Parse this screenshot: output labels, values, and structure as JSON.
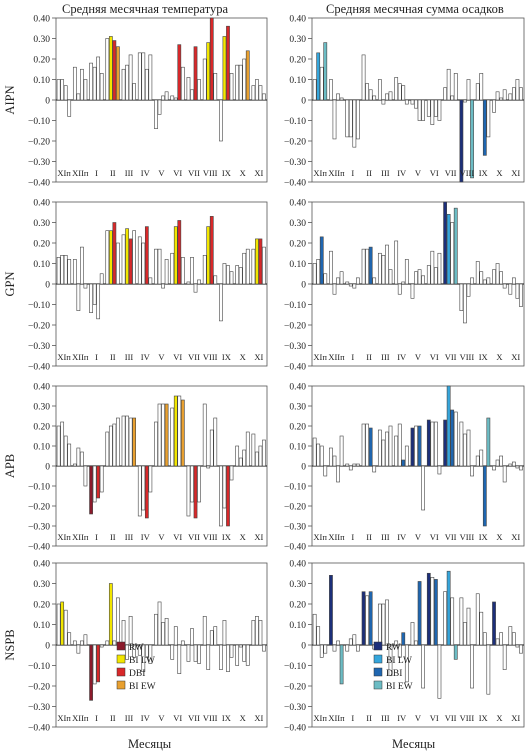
{
  "column_titles": [
    "Средняя месячная температура",
    "Средняя месячная сумма осадков"
  ],
  "xlabel": "Месяцы",
  "month_labels": [
    "XIп",
    "XIIп",
    "I",
    "II",
    "III",
    "IV",
    "V",
    "VI",
    "VII",
    "VIII",
    "IX",
    "X",
    "XI"
  ],
  "row_labels": [
    "AIPN",
    "GPN",
    "APB",
    "NSPB"
  ],
  "yticks": [
    "0.40",
    "0.30",
    "0.20",
    "0.10",
    "0",
    "−0.10",
    "−0.20",
    "−0.30",
    "−0.40"
  ],
  "legend": [
    {
      "label": "RW",
      "color": "#8b1a2b"
    },
    {
      "label": "BI LW",
      "color": "#f2e600"
    },
    {
      "label": "DBI",
      "color": "#d8282a"
    },
    {
      "label": "BI EW",
      "color": "#e8a030"
    }
  ],
  "legend_precip": [
    {
      "label": "RW",
      "color": "#1c2f7a"
    },
    {
      "label": "BI LW",
      "color": "#35a6dc"
    },
    {
      "label": "DBI",
      "color": "#1f66b0"
    },
    {
      "label": "BI EW",
      "color": "#6cbcc4"
    }
  ],
  "chart_data": [
    {
      "type": "bar",
      "row": "AIPN",
      "column": "temperature",
      "ylim": [
        -0.4,
        0.4
      ],
      "categories": [
        "XIп",
        "XIIп",
        "I",
        "II",
        "III",
        "IV",
        "V",
        "VI",
        "VII",
        "VIII",
        "IX",
        "X",
        "XI"
      ],
      "series": [
        {
          "name": "RW",
          "values": [
            0.1,
            0.16,
            0.18,
            0.3,
            0.15,
            0.23,
            -0.14,
            0.02,
            0.11,
            0.2,
            -0.2,
            0.17,
            0.07
          ]
        },
        {
          "name": "BI LW",
          "values": [
            0.1,
            0.03,
            0.16,
            0.31,
            0.17,
            0.23,
            -0.07,
            0.01,
            0.05,
            0.28,
            0.31,
            0.17,
            0.1
          ]
        },
        {
          "name": "DBI",
          "values": [
            0.07,
            0.15,
            0.21,
            0.29,
            0.22,
            0.15,
            0.02,
            0.27,
            0.26,
            0.4,
            0.36,
            0.2,
            0.07
          ]
        },
        {
          "name": "BI EW",
          "values": [
            -0.08,
            0.1,
            0.13,
            0.26,
            0.08,
            0.22,
            0.04,
            0.16,
            0.1,
            0.13,
            0.13,
            0.24,
            0.03
          ]
        }
      ]
    },
    {
      "type": "bar",
      "row": "AIPN",
      "column": "precipitation",
      "ylim": [
        -0.4,
        0.4
      ],
      "categories": [
        "XIп",
        "XIIп",
        "I",
        "II",
        "III",
        "IV",
        "V",
        "VI",
        "VII",
        "VIII",
        "IX",
        "X",
        "XI"
      ],
      "series": [
        {
          "name": "RW",
          "values": [
            0.1,
            0.1,
            -0.18,
            0.22,
            0.1,
            0.11,
            -0.02,
            -0.08,
            0.06,
            -0.4,
            0.08,
            -0.06,
            0.03
          ]
        },
        {
          "name": "BI LW",
          "values": [
            0.23,
            -0.19,
            -0.18,
            0.08,
            -0.02,
            0.08,
            -0.04,
            -0.12,
            0.15,
            -0.01,
            0.13,
            0.04,
            0.06
          ]
        },
        {
          "name": "DBI",
          "values": [
            0.16,
            0.03,
            -0.23,
            0.05,
            0.03,
            0.07,
            -0.1,
            -0.08,
            0.02,
            0.1,
            -0.27,
            0.01,
            0.1
          ]
        },
        {
          "name": "BI EW",
          "values": [
            0.28,
            0.01,
            -0.19,
            0.02,
            0.04,
            -0.02,
            -0.1,
            -0.1,
            0.13,
            -0.38,
            -0.18,
            0.05,
            0.06
          ]
        }
      ]
    },
    {
      "type": "bar",
      "row": "GPN",
      "column": "temperature",
      "ylim": [
        -0.4,
        0.4
      ],
      "categories": [
        "XIп",
        "XIIп",
        "I",
        "II",
        "III",
        "IV",
        "V",
        "VI",
        "VII",
        "VIII",
        "IX",
        "X",
        "XI"
      ],
      "series": [
        {
          "name": "RW",
          "values": [
            0.13,
            0.12,
            -0.14,
            0.26,
            0.24,
            0.23,
            0.17,
            0.15,
            0.01,
            0.14,
            -0.18,
            0.09,
            0.17
          ]
        },
        {
          "name": "BI LW",
          "values": [
            0.14,
            -0.13,
            -0.1,
            0.26,
            0.27,
            0.2,
            0.17,
            0.28,
            0.13,
            0.28,
            0.1,
            0.08,
            0.22
          ]
        },
        {
          "name": "DBI",
          "values": [
            0.14,
            0.18,
            -0.17,
            0.3,
            0.22,
            0.28,
            -0.02,
            0.31,
            -0.04,
            0.33,
            0.09,
            0.15,
            0.22
          ]
        },
        {
          "name": "BI EW",
          "values": [
            0.12,
            -0.02,
            0.05,
            0.2,
            0.26,
            0.03,
            0.12,
            0.13,
            0.02,
            0.04,
            0.06,
            0.17,
            0.18
          ]
        }
      ]
    },
    {
      "type": "bar",
      "row": "GPN",
      "column": "precipitation",
      "ylim": [
        -0.4,
        0.4
      ],
      "categories": [
        "XIп",
        "XIIп",
        "I",
        "II",
        "III",
        "IV",
        "V",
        "VI",
        "VII",
        "VIII",
        "IX",
        "X",
        "XI"
      ],
      "series": [
        {
          "name": "RW",
          "values": [
            0.1,
            0.16,
            0.01,
            0.17,
            0.15,
            0.21,
            -0.07,
            0.09,
            0.4,
            -0.13,
            0.11,
            0.07,
            -0.05
          ]
        },
        {
          "name": "BI LW",
          "values": [
            0.12,
            -0.05,
            -0.01,
            0.17,
            0.14,
            -0.05,
            0.06,
            0.16,
            0.34,
            -0.19,
            0.06,
            0.1,
            0.03
          ]
        },
        {
          "name": "DBI",
          "values": [
            0.23,
            0.03,
            -0.02,
            0.18,
            0.19,
            0.01,
            0.07,
            0.08,
            0.3,
            -0.06,
            0.02,
            0.06,
            -0.07
          ]
        },
        {
          "name": "BI EW",
          "values": [
            0.05,
            0.06,
            0.03,
            0.03,
            0.07,
            0.12,
            0.04,
            0.15,
            0.37,
            0.03,
            0.03,
            -0.02,
            -0.11
          ]
        }
      ]
    },
    {
      "type": "bar",
      "row": "APB",
      "column": "temperature",
      "ylim": [
        -0.4,
        0.4
      ],
      "categories": [
        "XIп",
        "XIIп",
        "I",
        "II",
        "III",
        "IV",
        "V",
        "VI",
        "VII",
        "VIII",
        "IX",
        "X",
        "XI"
      ],
      "series": [
        {
          "name": "RW",
          "values": [
            0.2,
            0.01,
            -0.24,
            0.17,
            0.25,
            -0.25,
            0.22,
            0.29,
            -0.25,
            0.31,
            -0.3,
            0.1,
            0.16
          ]
        },
        {
          "name": "BI LW",
          "values": [
            0.22,
            0.09,
            -0.18,
            0.2,
            0.25,
            -0.22,
            0.31,
            0.35,
            -0.18,
            -0.01,
            -0.21,
            0.04,
            0.07
          ]
        },
        {
          "name": "DBI",
          "values": [
            0.15,
            0.07,
            -0.16,
            0.21,
            0.24,
            -0.26,
            0.31,
            0.35,
            -0.26,
            0.18,
            -0.3,
            0.08,
            0.1
          ]
        },
        {
          "name": "BI EW",
          "values": [
            0.11,
            -0.1,
            -0.13,
            0.24,
            0.24,
            -0.13,
            0.31,
            0.33,
            -0.18,
            0.24,
            -0.07,
            0.17,
            0.13
          ]
        }
      ]
    },
    {
      "type": "bar",
      "row": "APB",
      "column": "precipitation",
      "ylim": [
        -0.4,
        0.4
      ],
      "categories": [
        "XIп",
        "XIIп",
        "I",
        "II",
        "III",
        "IV",
        "V",
        "VI",
        "VII",
        "VIII",
        "IX",
        "X",
        "XI"
      ],
      "series": [
        {
          "name": "RW",
          "values": [
            0.14,
            0.09,
            0.01,
            0.21,
            0.18,
            0.15,
            0.19,
            0.23,
            0.23,
            0.22,
            0.05,
            -0.02,
            0.01
          ]
        },
        {
          "name": "BI LW",
          "values": [
            0.11,
            0.05,
            -0.02,
            0.21,
            0.13,
            0.21,
            0.2,
            0.22,
            0.4,
            0.16,
            0.08,
            0.03,
            0.02
          ]
        },
        {
          "name": "DBI",
          "values": [
            0.1,
            -0.08,
            0.01,
            0.19,
            0.17,
            0.03,
            0.2,
            0.22,
            0.28,
            0.18,
            -0.3,
            0.05,
            -0.01
          ]
        },
        {
          "name": "BI EW",
          "values": [
            -0.05,
            0.15,
            0.01,
            -0.03,
            0.2,
            0.1,
            -0.22,
            -0.04,
            0.27,
            -0.05,
            0.24,
            -0.08,
            -0.02
          ]
        }
      ]
    },
    {
      "type": "bar",
      "row": "NSPB",
      "column": "temperature",
      "ylim": [
        -0.4,
        0.4
      ],
      "categories": [
        "XIп",
        "XIIп",
        "I",
        "II",
        "III",
        "IV",
        "V",
        "VI",
        "VII",
        "VIII",
        "IX",
        "X",
        "XI"
      ],
      "series": [
        {
          "name": "RW",
          "values": [
            0.2,
            0.02,
            -0.27,
            0.02,
            0.12,
            -0.05,
            0.15,
            -0.07,
            -0.08,
            0.14,
            -0.12,
            -0.1,
            0.12
          ]
        },
        {
          "name": "BI LW",
          "values": [
            0.21,
            -0.04,
            -0.19,
            0.3,
            -0.07,
            -0.13,
            0.21,
            0.09,
            0.08,
            -0.12,
            0.12,
            -0.01,
            0.14
          ]
        },
        {
          "name": "DBI",
          "values": [
            0.17,
            0.02,
            -0.18,
            0.02,
            0.14,
            -0.06,
            0.11,
            -0.14,
            -0.08,
            0.07,
            -0.13,
            -0.08,
            0.12
          ]
        },
        {
          "name": "BI EW",
          "values": [
            0.06,
            0.05,
            -0.01,
            0.23,
            -0.06,
            -0.09,
            0.13,
            0.02,
            -0.09,
            0.09,
            -0.06,
            -0.1,
            -0.03
          ]
        }
      ]
    },
    {
      "type": "bar",
      "row": "NSPB",
      "column": "precipitation",
      "ylim": [
        -0.4,
        0.4
      ],
      "categories": [
        "XIп",
        "XIIп",
        "I",
        "II",
        "III",
        "IV",
        "V",
        "VI",
        "VII",
        "VIII",
        "IX",
        "X",
        "XI"
      ],
      "series": [
        {
          "name": "RW",
          "values": [
            0.15,
            0.34,
            -0.03,
            0.26,
            0.2,
            0.02,
            0.11,
            0.35,
            0.26,
            0.23,
            0.25,
            0.21,
            0.09
          ]
        },
        {
          "name": "BI LW",
          "values": [
            0.09,
            -0.03,
            0.03,
            0.24,
            0.2,
            -0.06,
            0.02,
            0.33,
            0.36,
            0.11,
            0.16,
            0.03,
            0.06
          ]
        },
        {
          "name": "DBI",
          "values": [
            -0.06,
            0.02,
            0.05,
            0.26,
            0.22,
            0.06,
            0.31,
            0.32,
            0.23,
            0.18,
            0.06,
            0.06,
            -0.01
          ]
        },
        {
          "name": "BI EW",
          "values": [
            -0.04,
            -0.19,
            -0.03,
            -0.02,
            -0.15,
            -0.18,
            -0.21,
            -0.26,
            -0.07,
            -0.21,
            -0.24,
            -0.12,
            -0.04
          ]
        }
      ]
    }
  ]
}
